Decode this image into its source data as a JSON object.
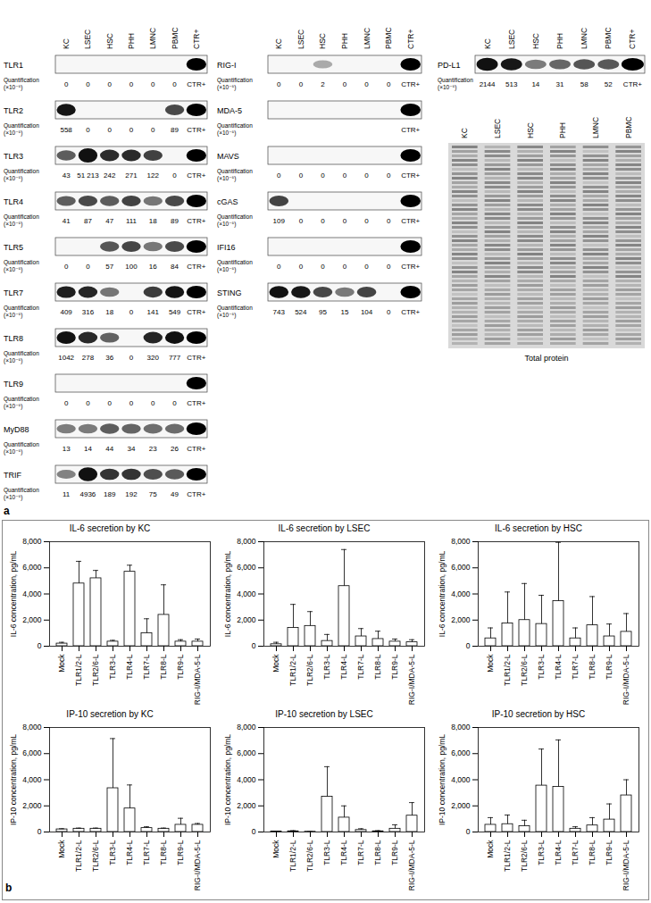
{
  "panel_a": {
    "letter": "a",
    "headers": [
      "KC",
      "LSEC",
      "HSC",
      "PHH",
      "LMNC",
      "PBMC",
      "CTR+"
    ],
    "quant_label": [
      "Quantification",
      "(×10⁻⁵)"
    ],
    "columns": [
      [
        {
          "name": "TLR1",
          "values": [
            0,
            0,
            0,
            0,
            0,
            0
          ]
        },
        {
          "name": "TLR2",
          "values": [
            558,
            0,
            0,
            0,
            0,
            89
          ]
        },
        {
          "name": "TLR3",
          "values": [
            43,
            {
              "value": 51213,
              "label": "51 213"
            },
            242,
            271,
            122,
            0
          ]
        },
        {
          "name": "TLR4",
          "values": [
            41,
            87,
            47,
            111,
            18,
            89
          ]
        },
        {
          "name": "TLR5",
          "values": [
            0,
            0,
            57,
            100,
            16,
            84
          ]
        },
        {
          "name": "TLR7",
          "values": [
            409,
            316,
            18,
            0,
            141,
            549
          ]
        },
        {
          "name": "TLR8",
          "values": [
            1042,
            278,
            36,
            0,
            320,
            777
          ]
        },
        {
          "name": "TLR9",
          "values": [
            0,
            0,
            0,
            0,
            0,
            0
          ]
        },
        {
          "name": "MyD88",
          "values": [
            13,
            14,
            44,
            34,
            23,
            26
          ]
        },
        {
          "name": "TRIF",
          "values": [
            11,
            4936,
            189,
            192,
            75,
            49
          ]
        }
      ],
      [
        {
          "name": "RIG-I",
          "values": [
            0,
            0,
            2,
            0,
            0,
            0
          ]
        },
        {
          "name": "MDA-5",
          "values": [
            null,
            null,
            null,
            null,
            null,
            null
          ]
        },
        {
          "name": "MAVS",
          "values": [
            0,
            0,
            0,
            0,
            0,
            0
          ]
        },
        {
          "name": "cGAS",
          "values": [
            109,
            0,
            0,
            0,
            0,
            0
          ]
        },
        {
          "name": "IFI16",
          "values": [
            0,
            0,
            0,
            0,
            0,
            0
          ]
        },
        {
          "name": "STING",
          "values": [
            743,
            524,
            95,
            15,
            104,
            0
          ]
        }
      ],
      [
        {
          "name": "PD-L1",
          "values": [
            2144,
            513,
            14,
            31,
            58,
            52
          ]
        }
      ]
    ],
    "total_protein": {
      "lanes": [
        "KC",
        "LSEC",
        "HSC",
        "PHH",
        "LMNC",
        "PBMC"
      ],
      "label": "Total protein"
    }
  },
  "panel_b_letter": "b",
  "chart_data": [
    {
      "type": "bar",
      "title": "IL-6 secretion by KC",
      "y_label": "IL-6 concentration, pg/mL",
      "categories": [
        "Mock",
        "TLR1/2-L",
        "TLR2/6-L",
        "TLR3-L",
        "TLR4-L",
        "TLR7-L",
        "TLR8-L",
        "TLR9-L",
        "RIG-I/MDA-5-L"
      ],
      "values": [
        200,
        4800,
        5200,
        350,
        5700,
        1000,
        2400,
        350,
        350
      ],
      "errors": [
        100,
        1700,
        600,
        100,
        500,
        1100,
        2300,
        150,
        200
      ],
      "color": "#ffffff",
      "ylim": [
        0,
        8000
      ],
      "yticks": [
        0,
        {
          "value": 2000,
          "label": "2,000"
        },
        {
          "value": 4000,
          "label": "4,000"
        },
        {
          "value": 6000,
          "label": "6,000"
        },
        {
          "value": 8000,
          "label": "8,000"
        }
      ]
    },
    {
      "type": "bar",
      "title": "IL-6 secretion by LSEC",
      "y_label": "IL-6 concentration, pg/mL",
      "categories": [
        "Mock",
        "TLR1/2-L",
        "TLR2/6-L",
        "TLR3-L",
        "TLR4-L",
        "TLR7-L",
        "TLR8-L",
        "TLR9-L",
        "RIG-I/MDA-5-L"
      ],
      "values": [
        150,
        1400,
        1550,
        400,
        4600,
        750,
        550,
        350,
        300
      ],
      "errors": [
        150,
        1800,
        1100,
        500,
        2800,
        600,
        600,
        200,
        200
      ],
      "color": "#ffffff",
      "ylim": [
        0,
        8000
      ],
      "yticks": [
        0,
        {
          "value": 2000,
          "label": "2,000"
        },
        {
          "value": 4000,
          "label": "4,000"
        },
        {
          "value": 6000,
          "label": "6,000"
        },
        {
          "value": 8000,
          "label": "8,000"
        }
      ]
    },
    {
      "type": "bar",
      "title": "IL-6 secretion by HSC",
      "y_label": "IL-6 concentration, pg/mL",
      "categories": [
        "Mock",
        "TLR1/2-L",
        "TLR2/6-L",
        "TLR3-L",
        "TLR4-L",
        "TLR7-L",
        "TLR8-L",
        "TLR9-L",
        "RIG-I/MDA-5-L"
      ],
      "values": [
        600,
        1750,
        2000,
        1700,
        3450,
        600,
        1600,
        750,
        1100
      ],
      "errors": [
        800,
        2400,
        2800,
        2200,
        4500,
        800,
        2200,
        950,
        1400
      ],
      "color": "#ffffff",
      "ylim": [
        0,
        8000
      ],
      "yticks": [
        0,
        {
          "value": 2000,
          "label": "2,000"
        },
        {
          "value": 4000,
          "label": "4,000"
        },
        {
          "value": 6000,
          "label": "6,000"
        },
        {
          "value": 8000,
          "label": "8,000"
        }
      ]
    },
    {
      "type": "bar",
      "title": "IP-10 secretion by KC",
      "y_label": "IP-10 concentration, pg/mL",
      "categories": [
        "Mock",
        "TLR1/2-L",
        "TLR2/6-L",
        "TLR3-L",
        "TLR4-L",
        "TLR7-L",
        "TLR8-L",
        "TLR9-L",
        "RIG-I/MDA-5-L"
      ],
      "values": [
        200,
        250,
        250,
        3350,
        1800,
        300,
        250,
        550,
        550
      ],
      "errors": [
        50,
        50,
        50,
        3800,
        1800,
        100,
        50,
        500,
        100
      ],
      "color": "#ffffff",
      "ylim": [
        0,
        8000
      ],
      "yticks": [
        0,
        {
          "value": 2000,
          "label": "2,000"
        },
        {
          "value": 4000,
          "label": "4,000"
        },
        {
          "value": 6000,
          "label": "6,000"
        },
        {
          "value": 8000,
          "label": "8,000"
        }
      ]
    },
    {
      "type": "bar",
      "title": "IP-10 secretion by LSEC",
      "y_label": "IP-10 concentration, pg/mL",
      "categories": [
        "Mock",
        "TLR1/2-L",
        "TLR2/6-L",
        "TLR3-L",
        "TLR4-L",
        "TLR7-L",
        "TLR8-L",
        "TLR9-L",
        "RIG-I/MDA-5-L"
      ],
      "values": [
        30,
        50,
        20,
        2700,
        1100,
        150,
        50,
        250,
        1250
      ],
      "errors": [
        30,
        50,
        10,
        2300,
        900,
        100,
        50,
        300,
        1000
      ],
      "color": "#ffffff",
      "ylim": [
        0,
        8000
      ],
      "yticks": [
        0,
        {
          "value": 2000,
          "label": "2,000"
        },
        {
          "value": 4000,
          "label": "4,000"
        },
        {
          "value": 6000,
          "label": "6,000"
        },
        {
          "value": 8000,
          "label": "8,000"
        }
      ]
    },
    {
      "type": "bar",
      "title": "IP-10 secretion by HSC",
      "y_label": "IP-10 concentration, pg/mL",
      "categories": [
        "Mock",
        "TLR1/2-L",
        "TLR2/6-L",
        "TLR3-L",
        "TLR4-L",
        "TLR7-L",
        "TLR8-L",
        "TLR9-L",
        "RIG-I/MDA-5-L"
      ],
      "values": [
        550,
        600,
        450,
        3550,
        3450,
        250,
        500,
        950,
        2800
      ],
      "errors": [
        550,
        700,
        450,
        2800,
        3600,
        150,
        600,
        1200,
        1200
      ],
      "color": "#ffffff",
      "ylim": [
        0,
        8000
      ],
      "yticks": [
        0,
        {
          "value": 2000,
          "label": "2,000"
        },
        {
          "value": 4000,
          "label": "4,000"
        },
        {
          "value": 6000,
          "label": "6,000"
        },
        {
          "value": 8000,
          "label": "8,000"
        }
      ]
    }
  ]
}
